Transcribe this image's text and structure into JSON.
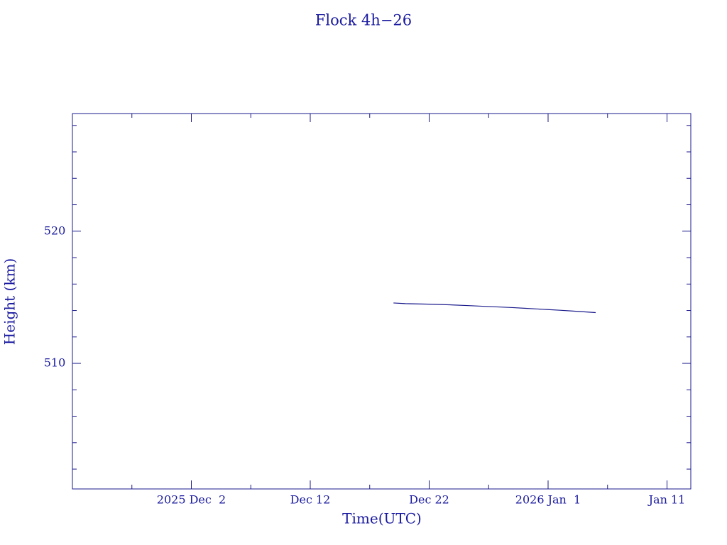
{
  "chart_data": {
    "type": "line",
    "title": "Flock 4h−26",
    "x_label": "Time(UTC)",
    "y_label": "Height (km)",
    "x": [
      "2025-12-19",
      "2025-12-20",
      "2025-12-21",
      "2025-12-22",
      "2025-12-23",
      "2025-12-24",
      "2025-12-25",
      "2025-12-26",
      "2025-12-27",
      "2025-12-28",
      "2025-12-29",
      "2025-12-30",
      "2025-12-31",
      "2026-01-01",
      "2026-01-02",
      "2026-01-03",
      "2026-01-04",
      "2026-01-05"
    ],
    "series": [
      {
        "name": "Height",
        "color": "#1a1a8c",
        "values": [
          514.57,
          514.52,
          514.5,
          514.48,
          514.45,
          514.42,
          514.38,
          514.34,
          514.3,
          514.26,
          514.22,
          514.17,
          514.12,
          514.07,
          514.02,
          513.96,
          513.9,
          513.84
        ]
      }
    ],
    "xlim": [
      "2025-11-22",
      "2026-01-13"
    ],
    "xticks": [
      {
        "value": "2025-12-02",
        "label": "2025 Dec  2"
      },
      {
        "value": "2025-12-12",
        "label": "Dec 12"
      },
      {
        "value": "2025-12-22",
        "label": "Dec 22"
      },
      {
        "value": "2026-01-01",
        "label": "2026 Jan  1"
      },
      {
        "value": "2026-01-11",
        "label": "Jan 11"
      }
    ],
    "xminorticks": [
      "2025-11-27",
      "2025-12-07",
      "2025-12-17",
      "2025-12-27",
      "2026-01-06"
    ],
    "ylim": [
      500.5,
      528.9
    ],
    "yticks": [
      510,
      520
    ],
    "yminorticks": [
      502,
      504,
      506,
      508,
      512,
      514,
      516,
      518,
      522,
      524,
      526,
      528
    ],
    "frame_color": "#1a1a8c"
  }
}
